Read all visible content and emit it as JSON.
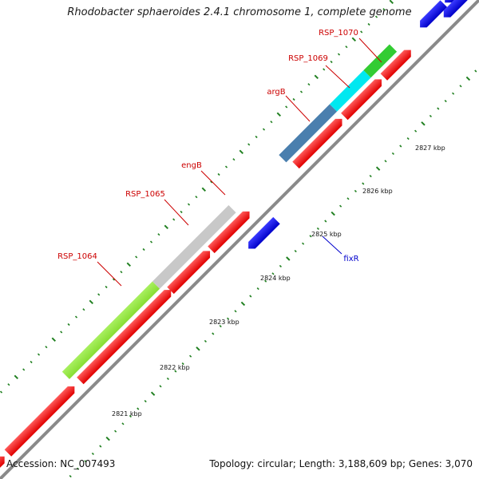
{
  "title": "Rhodobacter sphaeroides 2.4.1 chromosome 1, complete genome",
  "footer": {
    "accession": "Accession: NC_007493",
    "summary": "Topology: circular; Length: 3,188,609 bp; Genes: 3,070"
  },
  "colors": {
    "backbone": "#7f7f7f",
    "tick": "#208020",
    "label_red": "#cc0000",
    "label_blue": "#0000cc",
    "gene_red": "#ff0000",
    "gene_blue": "#0000e0"
  },
  "gene_labels": [
    {
      "text": "RSP_1070",
      "color": "red"
    },
    {
      "text": "RSP_1069",
      "color": "red"
    },
    {
      "text": "argB",
      "color": "red"
    },
    {
      "text": "engB",
      "color": "red"
    },
    {
      "text": "RSP_1065",
      "color": "red"
    },
    {
      "text": "RSP_1064",
      "color": "red"
    },
    {
      "text": "fixR",
      "color": "blue"
    }
  ],
  "scale_labels": [
    "2827 kbp",
    "2826 kbp",
    "2825 kbp",
    "2824 kbp",
    "2823 kbp",
    "2822 kbp",
    "2821 kbp"
  ]
}
